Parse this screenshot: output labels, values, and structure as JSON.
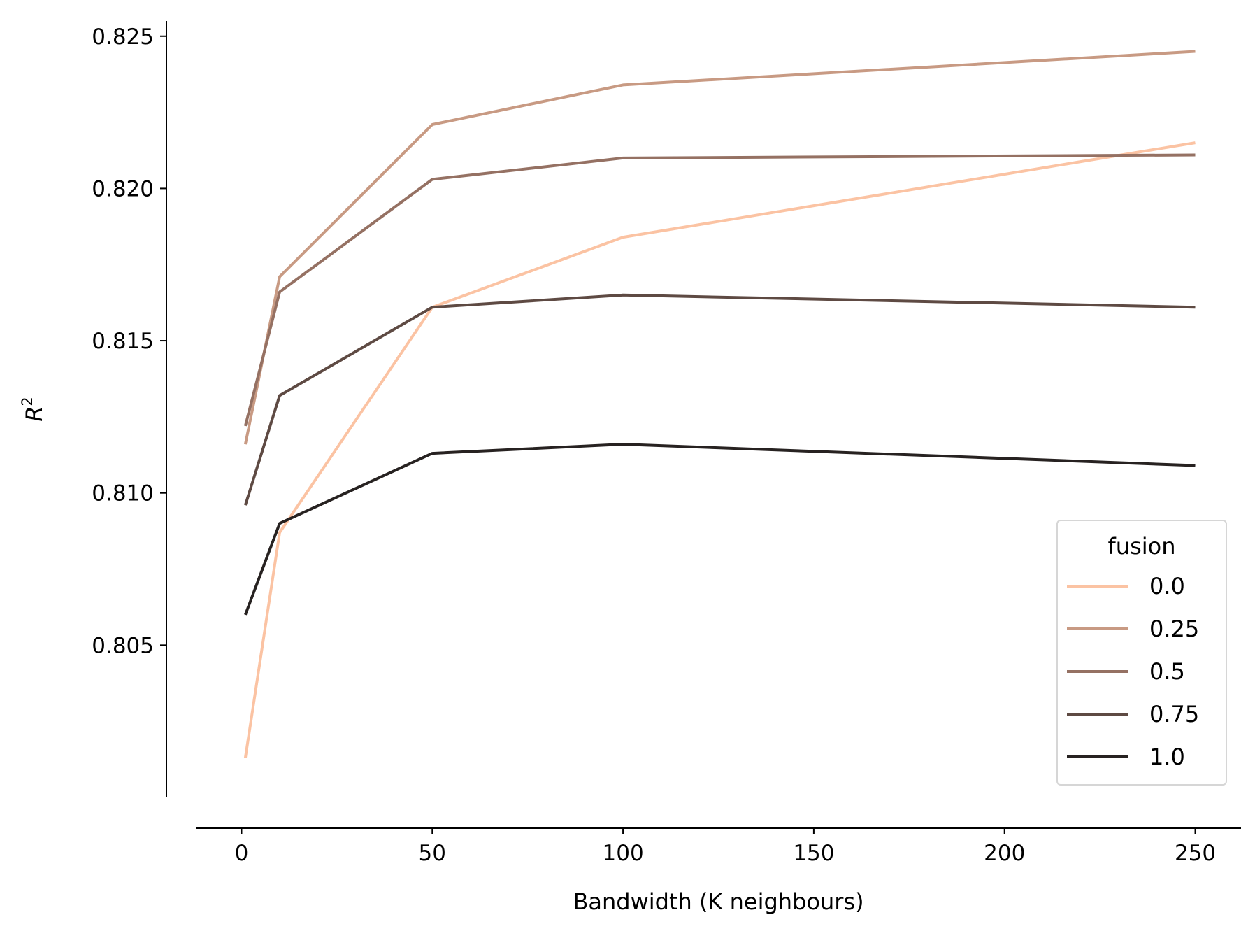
{
  "chart_data": {
    "type": "line",
    "title": "",
    "xlabel": "Bandwidth (K neighbours)",
    "ylabel_base": "R",
    "ylabel_sup": "2",
    "xlim": [
      -12,
      262
    ],
    "ylim": [
      0.8,
      0.8255
    ],
    "xticks": [
      0,
      50,
      100,
      150,
      200,
      250
    ],
    "xtick_labels": [
      "0",
      "50",
      "100",
      "150",
      "200",
      "250"
    ],
    "yticks": [
      0.805,
      0.81,
      0.815,
      0.82,
      0.825
    ],
    "ytick_labels": [
      "0.805",
      "0.810",
      "0.815",
      "0.820",
      "0.825"
    ],
    "grid": false,
    "legend": {
      "title": "fusion",
      "placement": "lower-right"
    },
    "x": [
      1,
      10,
      50,
      100,
      250
    ],
    "series": [
      {
        "name": "0.0",
        "color": "#fbc3a3",
        "values": [
          0.8013,
          0.8087,
          0.8161,
          0.8184,
          0.8215
        ]
      },
      {
        "name": "0.25",
        "color": "#c89a83",
        "values": [
          0.8116,
          0.8171,
          0.8221,
          0.8234,
          0.8245
        ]
      },
      {
        "name": "0.5",
        "color": "#957163",
        "values": [
          0.8122,
          0.8166,
          0.8203,
          0.821,
          0.8211
        ]
      },
      {
        "name": "0.75",
        "color": "#5e4a43",
        "values": [
          0.8096,
          0.8132,
          0.8161,
          0.8165,
          0.8161
        ]
      },
      {
        "name": "1.0",
        "color": "#272221",
        "values": [
          0.806,
          0.809,
          0.8113,
          0.8116,
          0.8109
        ]
      }
    ]
  }
}
